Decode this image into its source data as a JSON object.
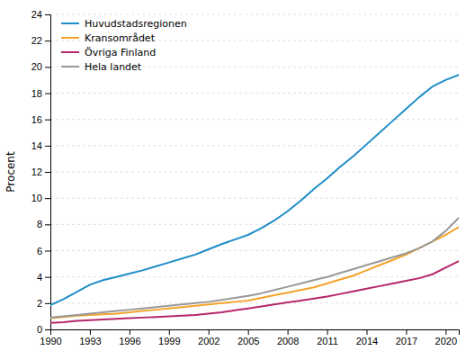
{
  "chart_data": {
    "type": "line",
    "ylabel": "Procent",
    "x": [
      1990,
      1991,
      1992,
      1993,
      1994,
      1995,
      1996,
      1997,
      1998,
      1999,
      2000,
      2001,
      2002,
      2003,
      2004,
      2005,
      2006,
      2007,
      2008,
      2009,
      2010,
      2011,
      2012,
      2013,
      2014,
      2015,
      2016,
      2017,
      2018,
      2019,
      2020,
      2021
    ],
    "series": [
      {
        "name": "Huvudstadsregionen",
        "color": "#1f8dc8",
        "values": [
          1.85,
          2.3,
          2.85,
          3.4,
          3.75,
          4.0,
          4.25,
          4.5,
          4.8,
          5.1,
          5.4,
          5.7,
          6.1,
          6.5,
          6.85,
          7.2,
          7.7,
          8.3,
          9.0,
          9.8,
          10.7,
          11.5,
          12.4,
          13.2,
          14.1,
          15.0,
          15.9,
          16.8,
          17.7,
          18.5,
          19.0,
          19.4
        ]
      },
      {
        "name": "Kransområdet",
        "color": "#f4a32a",
        "values": [
          0.85,
          0.95,
          1.05,
          1.1,
          1.15,
          1.2,
          1.3,
          1.4,
          1.5,
          1.6,
          1.7,
          1.8,
          1.9,
          2.0,
          2.1,
          2.2,
          2.4,
          2.6,
          2.8,
          3.0,
          3.2,
          3.5,
          3.8,
          4.1,
          4.5,
          4.9,
          5.3,
          5.7,
          6.2,
          6.7,
          7.2,
          7.8
        ]
      },
      {
        "name": "Övriga Finland",
        "color": "#b5276a",
        "values": [
          0.5,
          0.55,
          0.65,
          0.7,
          0.75,
          0.8,
          0.85,
          0.9,
          0.95,
          1.0,
          1.05,
          1.1,
          1.2,
          1.3,
          1.45,
          1.6,
          1.75,
          1.9,
          2.05,
          2.2,
          2.35,
          2.5,
          2.7,
          2.9,
          3.1,
          3.3,
          3.5,
          3.7,
          3.9,
          4.2,
          4.7,
          5.2
        ]
      },
      {
        "name": "Hela landet",
        "color": "#999999",
        "values": [
          0.9,
          1.0,
          1.1,
          1.2,
          1.3,
          1.4,
          1.5,
          1.6,
          1.7,
          1.8,
          1.9,
          2.0,
          2.1,
          2.25,
          2.4,
          2.55,
          2.75,
          3.0,
          3.25,
          3.5,
          3.75,
          4.0,
          4.3,
          4.6,
          4.9,
          5.2,
          5.5,
          5.8,
          6.2,
          6.7,
          7.5,
          8.5
        ]
      }
    ],
    "xlim": [
      1990,
      2021
    ],
    "xticks": [
      1990,
      1993,
      1996,
      1999,
      2002,
      2005,
      2008,
      2011,
      2014,
      2017,
      2020
    ],
    "ylim": [
      0,
      24
    ],
    "yticks": [
      0,
      2,
      4,
      6,
      8,
      10,
      12,
      14,
      16,
      18,
      20,
      22,
      24
    ],
    "grid": "y",
    "legend": "upper left"
  }
}
